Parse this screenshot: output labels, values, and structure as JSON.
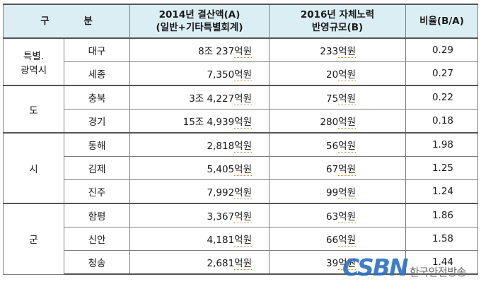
{
  "header": {
    "category": "구    분",
    "col_a_line1": "2014년 결산액(A)",
    "col_a_line2": "(일반+기타특별회계)",
    "col_b_line1": "2016년 자체노력",
    "col_b_line2": "반영규모(B)",
    "col_ratio": "비율(B/A)"
  },
  "unit": "억원",
  "groups": [
    {
      "label_line1": "특별.",
      "label_line2": "광역시",
      "rows": [
        {
          "name": "대구",
          "a_prefix": "8조 237",
          "b_prefix": "233",
          "ratio": "0.29"
        },
        {
          "name": "세종",
          "a_prefix": "7,350",
          "b_prefix": "20",
          "ratio": "0.27"
        }
      ]
    },
    {
      "label_line1": "도",
      "label_line2": "",
      "rows": [
        {
          "name": "충북",
          "a_prefix": "3조 4,227",
          "b_prefix": "75",
          "ratio": "0.22"
        },
        {
          "name": "경기",
          "a_prefix": "15조 4,939",
          "b_prefix": "280",
          "ratio": "0.18"
        }
      ]
    },
    {
      "label_line1": "시",
      "label_line2": "",
      "rows": [
        {
          "name": "동해",
          "a_prefix": "2,818",
          "b_prefix": "56",
          "ratio": "1.98"
        },
        {
          "name": "김제",
          "a_prefix": "5,405",
          "b_prefix": "67",
          "ratio": "1.25"
        },
        {
          "name": "진주",
          "a_prefix": "7,992",
          "b_prefix": "99",
          "ratio": "1.24"
        }
      ]
    },
    {
      "label_line1": "군",
      "label_line2": "",
      "rows": [
        {
          "name": "함평",
          "a_prefix": "3,367",
          "b_prefix": "63",
          "ratio": "1.86"
        },
        {
          "name": "신안",
          "a_prefix": "4,181",
          "b_prefix": "66",
          "ratio": "1.58"
        },
        {
          "name": "청송",
          "a_prefix": "2,681",
          "b_prefix": "39",
          "ratio": "1.44"
        }
      ]
    }
  ],
  "watermark": {
    "logo_text": "CSBN",
    "name": "한국안전방송"
  },
  "colors": {
    "header_bg": "#dbeef4",
    "logo_blue": "#2b6fc0"
  }
}
